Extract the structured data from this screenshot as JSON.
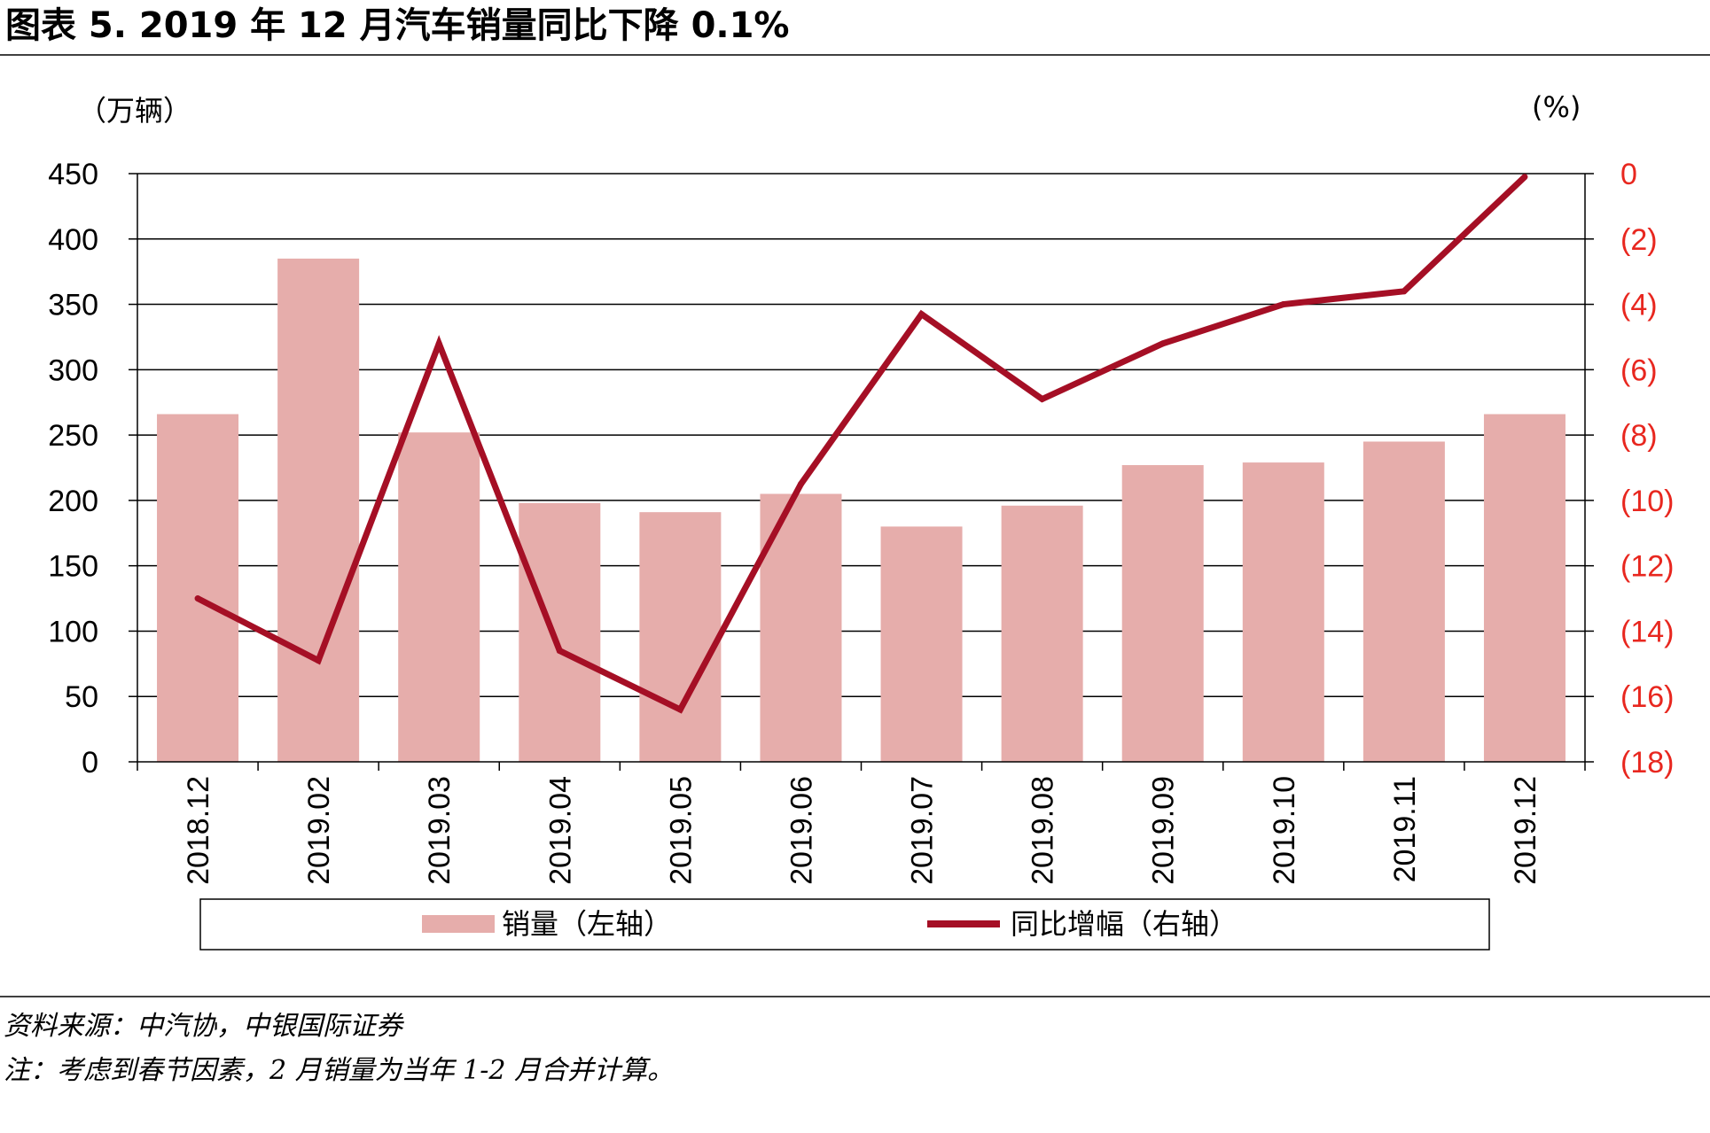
{
  "title": "图表 5. 2019 年 12 月汽车销量同比下降 0.1%",
  "left_unit": "（万辆）",
  "right_unit": "(%)",
  "left_ticks": [
    "0",
    "50",
    "100",
    "150",
    "200",
    "250",
    "300",
    "350",
    "400",
    "450"
  ],
  "right_ticks": [
    "(18)",
    "(16)",
    "(14)",
    "(12)",
    "(10)",
    "(8)",
    "(6)",
    "(4)",
    "(2)",
    "0"
  ],
  "legend": {
    "bar_label": "销量（左轴）",
    "line_label": "同比增幅（右轴）"
  },
  "source": "资料来源：中汽协，中银国际证券",
  "note": "注：考虑到春节因素，2 月销量为当年 1-2 月合并计算。",
  "colors": {
    "bar": "#e6adab",
    "line": "#a50f25",
    "right_axis_text": "#e8271f"
  },
  "chart_data": {
    "type": "bar",
    "title": "图表 5. 2019 年 12 月汽车销量同比下降 0.1%",
    "categories": [
      "2018.12",
      "2019.02",
      "2019.03",
      "2019.04",
      "2019.05",
      "2019.06",
      "2019.07",
      "2019.08",
      "2019.09",
      "2019.10",
      "2019.11",
      "2019.12"
    ],
    "series": [
      {
        "name": "销量（左轴）",
        "type": "bar",
        "axis": "left",
        "values": [
          266,
          385,
          252,
          198,
          191,
          205,
          180,
          196,
          227,
          229,
          245,
          266
        ]
      },
      {
        "name": "同比增幅（右轴）",
        "type": "line",
        "axis": "right",
        "values": [
          -13.0,
          -14.9,
          -5.2,
          -14.6,
          -16.4,
          -9.5,
          -4.3,
          -6.9,
          -5.2,
          -4.0,
          -3.6,
          -0.1
        ]
      }
    ],
    "ylim_left": [
      0,
      450
    ],
    "ylim_right": [
      -18,
      0
    ],
    "ylabel_left": "（万辆）",
    "ylabel_right": "(%)",
    "grid": true,
    "legend_position": "bottom"
  }
}
